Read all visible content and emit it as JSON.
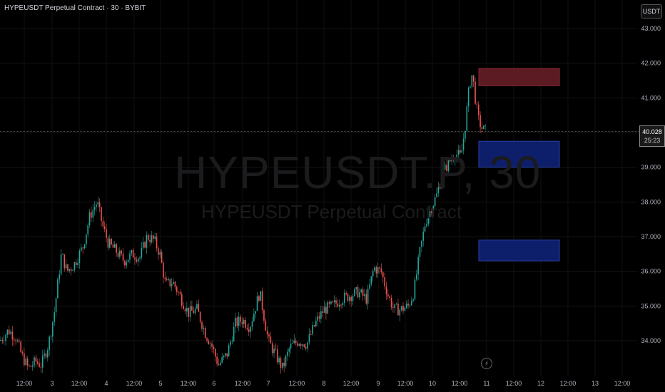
{
  "header": {
    "title": "HYPEUSDT Perpetual Contract · 30 · BYBIT",
    "unit_label": "USDT"
  },
  "watermark": {
    "symbol": "HYPEUSDT.P, 30",
    "name": "HYPEUSDT Perpetual Contract"
  },
  "price_tag": {
    "price": "40.028",
    "countdown": "25:23"
  },
  "event_icon": "lightning-icon",
  "colors": {
    "up": "#26a69a",
    "down": "#ef5350",
    "supply_zone": "#5c1a22",
    "demand_zone": "#0d1f6b"
  },
  "chart_data": {
    "type": "candlestick",
    "title": "",
    "xlabel": "",
    "ylabel": "",
    "ylim": [
      33.0,
      43.0
    ],
    "y_ticks": [
      "43.000",
      "42.000",
      "41.000",
      "40.000",
      "39.000",
      "38.000",
      "37.000",
      "36.000",
      "35.000",
      "34.000"
    ],
    "x_tick_labels": [
      "12:00",
      "3",
      "12:00",
      "4",
      "12:00",
      "5",
      "12:00",
      "6",
      "12:00",
      "7",
      "12:00",
      "8",
      "12:00",
      "9",
      "12:00",
      "10",
      "12:00",
      "11",
      "12:00",
      "12",
      "12:00",
      "13",
      "12:00"
    ],
    "price_path": [
      [
        0,
        34.0
      ],
      [
        12,
        34.3
      ],
      [
        22,
        34.1
      ],
      [
        30,
        33.6
      ],
      [
        40,
        33.2
      ],
      [
        50,
        33.4
      ],
      [
        58,
        33.3
      ],
      [
        68,
        33.9
      ],
      [
        76,
        34.8
      ],
      [
        86,
        36.5
      ],
      [
        94,
        36.0
      ],
      [
        104,
        36.2
      ],
      [
        116,
        36.7
      ],
      [
        126,
        37.6
      ],
      [
        136,
        38.0
      ],
      [
        144,
        37.3
      ],
      [
        152,
        36.8
      ],
      [
        162,
        36.6
      ],
      [
        174,
        36.3
      ],
      [
        186,
        36.5
      ],
      [
        196,
        36.4
      ],
      [
        206,
        37.0
      ],
      [
        216,
        36.9
      ],
      [
        224,
        36.5
      ],
      [
        232,
        35.6
      ],
      [
        242,
        35.7
      ],
      [
        252,
        35.3
      ],
      [
        264,
        34.8
      ],
      [
        276,
        34.9
      ],
      [
        288,
        34.2
      ],
      [
        296,
        33.9
      ],
      [
        306,
        33.3
      ],
      [
        318,
        33.6
      ],
      [
        330,
        34.5
      ],
      [
        340,
        34.6
      ],
      [
        350,
        34.4
      ],
      [
        364,
        35.4
      ],
      [
        376,
        34.0
      ],
      [
        386,
        33.6
      ],
      [
        396,
        33.2
      ],
      [
        406,
        33.8
      ],
      [
        418,
        34.0
      ],
      [
        430,
        33.9
      ],
      [
        442,
        34.5
      ],
      [
        454,
        34.9
      ],
      [
        466,
        35.0
      ],
      [
        478,
        35.2
      ],
      [
        490,
        35.3
      ],
      [
        502,
        35.4
      ],
      [
        514,
        35.2
      ],
      [
        524,
        36.1
      ],
      [
        534,
        36.0
      ],
      [
        544,
        35.3
      ],
      [
        552,
        34.9
      ],
      [
        562,
        34.9
      ],
      [
        572,
        35.0
      ],
      [
        580,
        35.4
      ],
      [
        588,
        36.5
      ],
      [
        596,
        37.4
      ],
      [
        604,
        37.8
      ],
      [
        612,
        38.2
      ],
      [
        620,
        38.8
      ],
      [
        628,
        39.1
      ],
      [
        638,
        39.4
      ],
      [
        646,
        39.3
      ],
      [
        652,
        40.2
      ],
      [
        658,
        41.4
      ],
      [
        662,
        41.7
      ],
      [
        666,
        41.0
      ],
      [
        670,
        40.4
      ],
      [
        676,
        40.1
      ],
      [
        682,
        40.03
      ]
    ],
    "zones": [
      {
        "type": "supply",
        "y_low": 41.35,
        "y_high": 41.85,
        "x_start": 671,
        "x_end": 784
      },
      {
        "type": "demand",
        "y_low": 39.0,
        "y_high": 39.75,
        "x_start": 671,
        "x_end": 784
      },
      {
        "type": "demand",
        "y_low": 36.3,
        "y_high": 36.9,
        "x_start": 671,
        "x_end": 784
      }
    ],
    "current_price": 40.028
  }
}
